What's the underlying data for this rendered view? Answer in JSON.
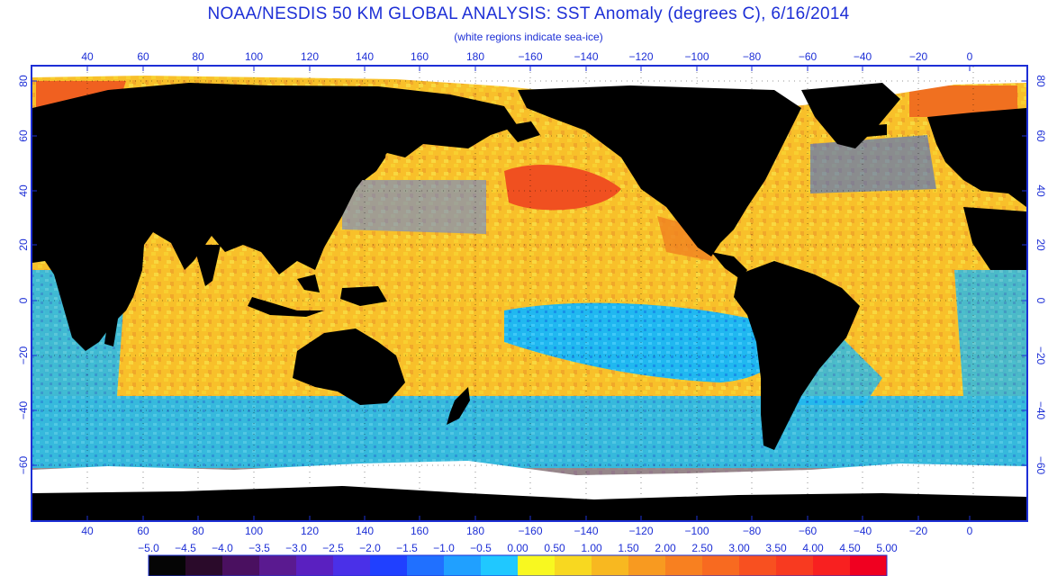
{
  "title": "NOAA/NESDIS 50 KM GLOBAL ANALYSIS: SST Anomaly (degrees C), 6/16/2014",
  "subtitle": "(white regions indicate sea-ice)",
  "axes": {
    "lon_ticks": [
      "40",
      "60",
      "80",
      "100",
      "120",
      "140",
      "160",
      "180",
      "−160",
      "−140",
      "−120",
      "−100",
      "−80",
      "−60",
      "−40",
      "−20",
      "0"
    ],
    "lat_ticks": [
      "80",
      "60",
      "40",
      "20",
      "0",
      "−20",
      "−40",
      "−60"
    ]
  },
  "colorbar": {
    "labels": [
      "−5.0",
      "−4.5",
      "−4.0",
      "−3.5",
      "−3.0",
      "−2.5",
      "−2.0",
      "−1.5",
      "−1.0",
      "−0.5",
      "0.00",
      "0.50",
      "1.00",
      "1.50",
      "2.00",
      "2.50",
      "3.00",
      "3.50",
      "4.00",
      "4.50",
      "5.00"
    ],
    "colors": [
      "#050505",
      "#2a0a2a",
      "#4a1060",
      "#5a1a90",
      "#5a20c0",
      "#4a30e8",
      "#2040ff",
      "#2070ff",
      "#20a0ff",
      "#20c8ff",
      "#f8f820",
      "#f8d820",
      "#f8b820",
      "#f89a20",
      "#f88020",
      "#f86a20",
      "#f85020",
      "#f83a20",
      "#f82020",
      "#f00020"
    ]
  },
  "colors": {
    "land": "#000000",
    "ice": "#ffffff",
    "frame": "#1d2fd6",
    "ocean_warm": "#f8c02a",
    "ocean_cool": "#20b8f0"
  }
}
